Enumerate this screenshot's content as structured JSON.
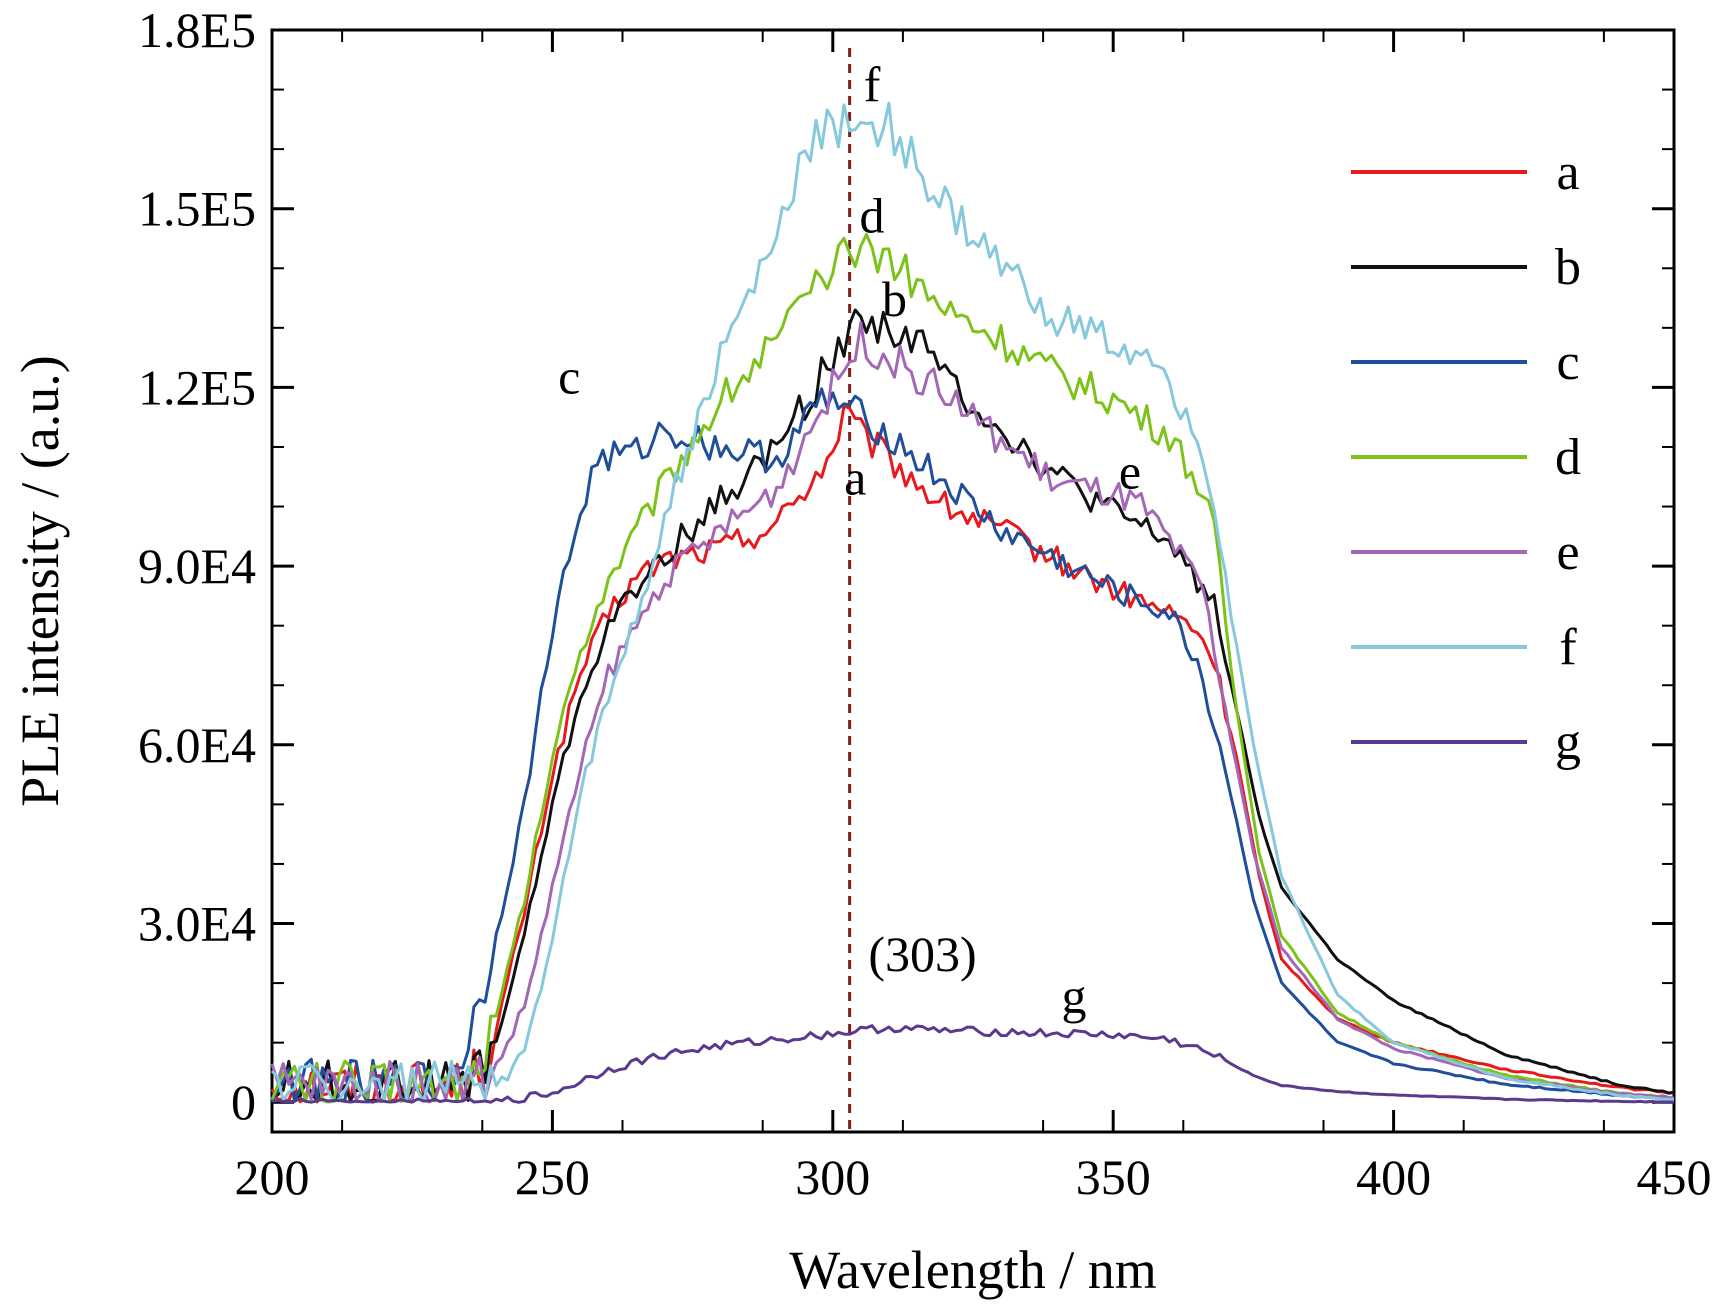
{
  "chart_data": {
    "type": "line",
    "xlabel": "Wavelength / nm",
    "ylabel": "PLE intensity / (a.u.)",
    "xlim": [
      200,
      450
    ],
    "ylim": [
      -5000,
      180000
    ],
    "x_ticks": [
      200,
      250,
      300,
      350,
      400,
      450
    ],
    "x_tick_labels": [
      "200",
      "250",
      "300",
      "350",
      "400",
      "450"
    ],
    "y_ticks": [
      0,
      30000,
      60000,
      90000,
      120000,
      150000,
      180000
    ],
    "y_tick_labels": [
      "0",
      "3.0E4",
      "6.0E4",
      "9.0E4",
      "1.2E5",
      "1.5E5",
      "1.8E5"
    ],
    "grid": false,
    "legend_position": "top-right",
    "reference_line": {
      "x": 303,
      "label": "(303)",
      "color": "#7a1f1f",
      "style": "dashed"
    },
    "series": [
      {
        "name": "a",
        "color": "#e8191c",
        "points": [
          [
            200,
            3000
          ],
          [
            220,
            2500
          ],
          [
            235,
            3000
          ],
          [
            240,
            12000
          ],
          [
            245,
            32000
          ],
          [
            250,
            55000
          ],
          [
            255,
            72000
          ],
          [
            260,
            82000
          ],
          [
            265,
            88000
          ],
          [
            270,
            91000
          ],
          [
            280,
            93000
          ],
          [
            290,
            97000
          ],
          [
            300,
            109000
          ],
          [
            302,
            116000
          ],
          [
            305,
            112000
          ],
          [
            310,
            108000
          ],
          [
            320,
            100000
          ],
          [
            330,
            96000
          ],
          [
            340,
            91000
          ],
          [
            350,
            86000
          ],
          [
            360,
            82000
          ],
          [
            365,
            79000
          ],
          [
            368,
            74000
          ],
          [
            372,
            58000
          ],
          [
            376,
            38000
          ],
          [
            380,
            24000
          ],
          [
            390,
            14000
          ],
          [
            400,
            10000
          ],
          [
            420,
            5500
          ],
          [
            440,
            2500
          ],
          [
            450,
            1500
          ]
        ]
      },
      {
        "name": "b",
        "color": "#111111",
        "points": [
          [
            200,
            3000
          ],
          [
            220,
            2500
          ],
          [
            235,
            3000
          ],
          [
            240,
            10000
          ],
          [
            245,
            28000
          ],
          [
            250,
            50000
          ],
          [
            255,
            68000
          ],
          [
            260,
            80000
          ],
          [
            270,
            92000
          ],
          [
            280,
            101000
          ],
          [
            290,
            110000
          ],
          [
            300,
            125000
          ],
          [
            305,
            132000
          ],
          [
            310,
            130000
          ],
          [
            315,
            128000
          ],
          [
            320,
            122000
          ],
          [
            330,
            113000
          ],
          [
            340,
            105000
          ],
          [
            350,
            99000
          ],
          [
            360,
            94000
          ],
          [
            368,
            84000
          ],
          [
            372,
            66000
          ],
          [
            376,
            48000
          ],
          [
            380,
            36000
          ],
          [
            390,
            24000
          ],
          [
            400,
            17000
          ],
          [
            420,
            8000
          ],
          [
            440,
            3000
          ],
          [
            450,
            1500
          ]
        ]
      },
      {
        "name": "c",
        "color": "#1f4e9a",
        "points": [
          [
            200,
            3000
          ],
          [
            220,
            2500
          ],
          [
            230,
            3000
          ],
          [
            235,
            10000
          ],
          [
            240,
            28000
          ],
          [
            245,
            50000
          ],
          [
            250,
            80000
          ],
          [
            255,
            99000
          ],
          [
            258,
            108000
          ],
          [
            265,
            109000
          ],
          [
            270,
            113000
          ],
          [
            280,
            110000
          ],
          [
            290,
            108000
          ],
          [
            298,
            118000
          ],
          [
            302,
            117000
          ],
          [
            310,
            112000
          ],
          [
            320,
            104000
          ],
          [
            330,
            96000
          ],
          [
            340,
            91000
          ],
          [
            350,
            86000
          ],
          [
            360,
            82000
          ],
          [
            365,
            74000
          ],
          [
            370,
            56000
          ],
          [
            375,
            34000
          ],
          [
            380,
            20000
          ],
          [
            390,
            10000
          ],
          [
            400,
            6500
          ],
          [
            420,
            3000
          ],
          [
            440,
            1200
          ],
          [
            450,
            500
          ]
        ]
      },
      {
        "name": "d",
        "color": "#7cc21b",
        "points": [
          [
            200,
            3000
          ],
          [
            220,
            2500
          ],
          [
            235,
            3000
          ],
          [
            240,
            14000
          ],
          [
            245,
            34000
          ],
          [
            250,
            58000
          ],
          [
            255,
            76000
          ],
          [
            260,
            88000
          ],
          [
            270,
            104000
          ],
          [
            280,
            118000
          ],
          [
            290,
            128000
          ],
          [
            300,
            140000
          ],
          [
            305,
            144000
          ],
          [
            310,
            142000
          ],
          [
            320,
            133000
          ],
          [
            330,
            128000
          ],
          [
            340,
            122000
          ],
          [
            350,
            118000
          ],
          [
            360,
            112000
          ],
          [
            365,
            104000
          ],
          [
            368,
            96000
          ],
          [
            372,
            66000
          ],
          [
            376,
            42000
          ],
          [
            380,
            28000
          ],
          [
            390,
            15000
          ],
          [
            400,
            10000
          ],
          [
            420,
            4500
          ],
          [
            440,
            1500
          ],
          [
            450,
            800
          ]
        ]
      },
      {
        "name": "e",
        "color": "#a367b5",
        "points": [
          [
            200,
            3000
          ],
          [
            220,
            2500
          ],
          [
            235,
            3000
          ],
          [
            240,
            6000
          ],
          [
            245,
            16000
          ],
          [
            250,
            36000
          ],
          [
            255,
            56000
          ],
          [
            260,
            72000
          ],
          [
            270,
            88000
          ],
          [
            280,
            96000
          ],
          [
            290,
            103000
          ],
          [
            300,
            120000
          ],
          [
            305,
            128000
          ],
          [
            310,
            125000
          ],
          [
            320,
            119000
          ],
          [
            330,
            111000
          ],
          [
            340,
            104000
          ],
          [
            350,
            102000
          ],
          [
            355,
            100000
          ],
          [
            360,
            94000
          ],
          [
            366,
            86000
          ],
          [
            370,
            66000
          ],
          [
            375,
            42000
          ],
          [
            380,
            26000
          ],
          [
            390,
            14000
          ],
          [
            400,
            9000
          ],
          [
            420,
            4000
          ],
          [
            440,
            1500
          ],
          [
            450,
            800
          ]
        ]
      },
      {
        "name": "f",
        "color": "#86c8dc",
        "points": [
          [
            200,
            3000
          ],
          [
            220,
            2500
          ],
          [
            235,
            3000
          ],
          [
            240,
            2000
          ],
          [
            245,
            8000
          ],
          [
            250,
            28000
          ],
          [
            255,
            52000
          ],
          [
            260,
            68000
          ],
          [
            265,
            82000
          ],
          [
            270,
            98000
          ],
          [
            280,
            125000
          ],
          [
            290,
            145000
          ],
          [
            295,
            160000
          ],
          [
            300,
            164000
          ],
          [
            305,
            165000
          ],
          [
            310,
            164000
          ],
          [
            320,
            150000
          ],
          [
            330,
            140000
          ],
          [
            340,
            132000
          ],
          [
            350,
            127000
          ],
          [
            360,
            121000
          ],
          [
            365,
            112000
          ],
          [
            370,
            88000
          ],
          [
            375,
            60000
          ],
          [
            380,
            38000
          ],
          [
            390,
            18000
          ],
          [
            400,
            10000
          ],
          [
            420,
            4000
          ],
          [
            440,
            1200
          ],
          [
            450,
            500
          ]
        ]
      },
      {
        "name": "g",
        "color": "#5b3a8e",
        "points": [
          [
            200,
            0
          ],
          [
            240,
            0
          ],
          [
            250,
            1500
          ],
          [
            260,
            5500
          ],
          [
            270,
            8000
          ],
          [
            280,
            9500
          ],
          [
            290,
            10500
          ],
          [
            300,
            11500
          ],
          [
            310,
            12500
          ],
          [
            320,
            12000
          ],
          [
            330,
            11800
          ],
          [
            340,
            11500
          ],
          [
            350,
            11300
          ],
          [
            360,
            10500
          ],
          [
            365,
            9000
          ],
          [
            370,
            7000
          ],
          [
            375,
            4500
          ],
          [
            380,
            2800
          ],
          [
            390,
            1800
          ],
          [
            400,
            1200
          ],
          [
            420,
            500
          ],
          [
            440,
            150
          ],
          [
            450,
            50
          ]
        ]
      }
    ],
    "curve_labels": [
      {
        "series": "f",
        "text": "f",
        "x": 307,
        "y": 168000
      },
      {
        "series": "d",
        "text": "d",
        "x": 307,
        "y": 146000
      },
      {
        "series": "b",
        "text": "b",
        "x": 311,
        "y": 132000
      },
      {
        "series": "c",
        "text": "c",
        "x": 253,
        "y": 119000
      },
      {
        "series": "a",
        "text": "a",
        "x": 304,
        "y": 102000
      },
      {
        "series": "e",
        "text": "e",
        "x": 353,
        "y": 103000
      },
      {
        "series": "g",
        "text": "g",
        "x": 343,
        "y": 15000
      }
    ]
  }
}
